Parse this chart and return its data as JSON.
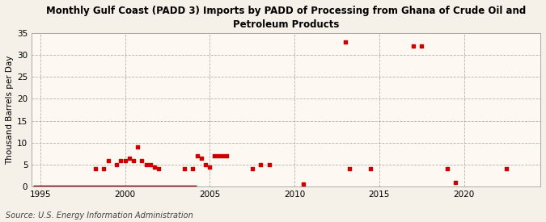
{
  "title": "Monthly Gulf Coast (PADD 3) Imports by PADD of Processing from Ghana of Crude Oil and\nPetroleum Products",
  "ylabel": "Thousand Barrels per Day",
  "source": "Source: U.S. Energy Information Administration",
  "background_color": "#f5f0e8",
  "plot_background_color": "#fdf8f2",
  "marker_color": "#cc0000",
  "line_color": "#8b0000",
  "xlim": [
    1994.5,
    2024.5
  ],
  "ylim": [
    0,
    35
  ],
  "yticks": [
    0,
    5,
    10,
    15,
    20,
    25,
    30,
    35
  ],
  "xticks": [
    1995,
    2000,
    2005,
    2010,
    2015,
    2020
  ],
  "scatter_x": [
    1998.25,
    1998.75,
    1999.0,
    1999.5,
    1999.75,
    2000.0,
    2000.25,
    2000.5,
    2000.75,
    2001.0,
    2001.25,
    2001.5,
    2001.75,
    2002.0,
    2003.5,
    2004.0,
    2004.25,
    2004.5,
    2004.75,
    2005.0,
    2005.25,
    2005.5,
    2005.75,
    2006.0,
    2007.5,
    2008.0,
    2008.5,
    2010.5,
    2013.0,
    2013.25,
    2014.5,
    2017.0,
    2017.5,
    2019.0,
    2019.5,
    2022.5
  ],
  "scatter_y": [
    4.0,
    4.0,
    6.0,
    5.0,
    6.0,
    6.0,
    6.5,
    6.0,
    9.0,
    6.0,
    5.0,
    5.0,
    4.5,
    4.0,
    4.0,
    4.0,
    7.0,
    6.5,
    5.0,
    4.5,
    7.0,
    7.0,
    7.0,
    7.0,
    4.0,
    5.0,
    5.0,
    0.5,
    33.0,
    4.0,
    4.0,
    32.0,
    32.0,
    4.0,
    1.0,
    4.0
  ],
  "line_x_start": 1994.6,
  "line_x_end": 2004.2,
  "line_y": 0.0
}
